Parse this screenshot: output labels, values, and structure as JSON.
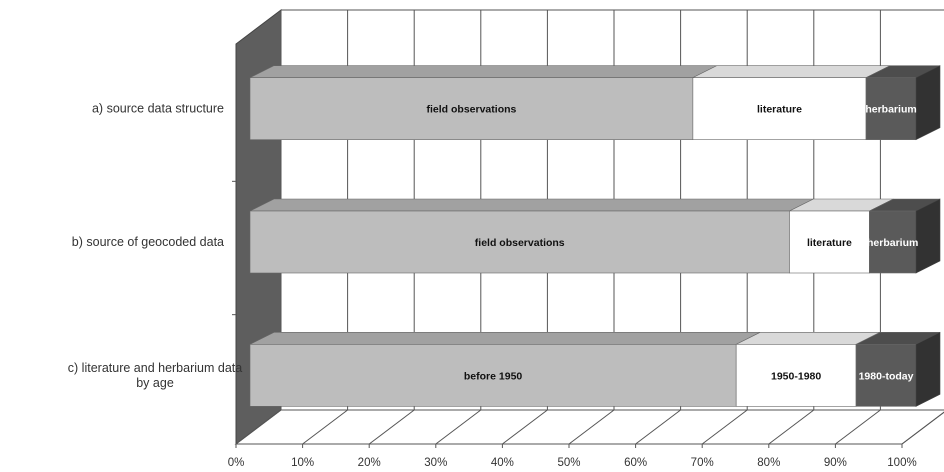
{
  "chart_data": {
    "type": "bar",
    "orientation": "horizontal",
    "stacked": "percent",
    "three_d": true,
    "xlim": [
      0,
      100
    ],
    "x_ticks": [
      "0%",
      "10%",
      "20%",
      "30%",
      "40%",
      "50%",
      "60%",
      "70%",
      "80%",
      "90%",
      "100%"
    ],
    "grid": true,
    "categories": [
      {
        "label_lines": [
          "a) source data structure"
        ],
        "segments": [
          {
            "label": "field observations",
            "value": 66.5,
            "color": "#bdbdbd"
          },
          {
            "label": "literature",
            "value": 26.0,
            "color": "#ffffff"
          },
          {
            "label": "herbarium",
            "value": 7.5,
            "color": "#5a5a5a"
          }
        ]
      },
      {
        "label_lines": [
          "b) source of geocoded data"
        ],
        "segments": [
          {
            "label": "field observations",
            "value": 81.0,
            "color": "#bdbdbd"
          },
          {
            "label": "literature",
            "value": 12.0,
            "color": "#ffffff"
          },
          {
            "label": "herbarium",
            "value": 7.0,
            "color": "#5a5a5a"
          }
        ]
      },
      {
        "label_lines": [
          "c) literature and herbarium data",
          "by age"
        ],
        "segments": [
          {
            "label": "before 1950",
            "value": 73.0,
            "color": "#bdbdbd"
          },
          {
            "label": "1950-1980",
            "value": 18.0,
            "color": "#ffffff"
          },
          {
            "label": "1980-today",
            "value": 9.0,
            "color": "#5a5a5a"
          }
        ]
      }
    ]
  }
}
